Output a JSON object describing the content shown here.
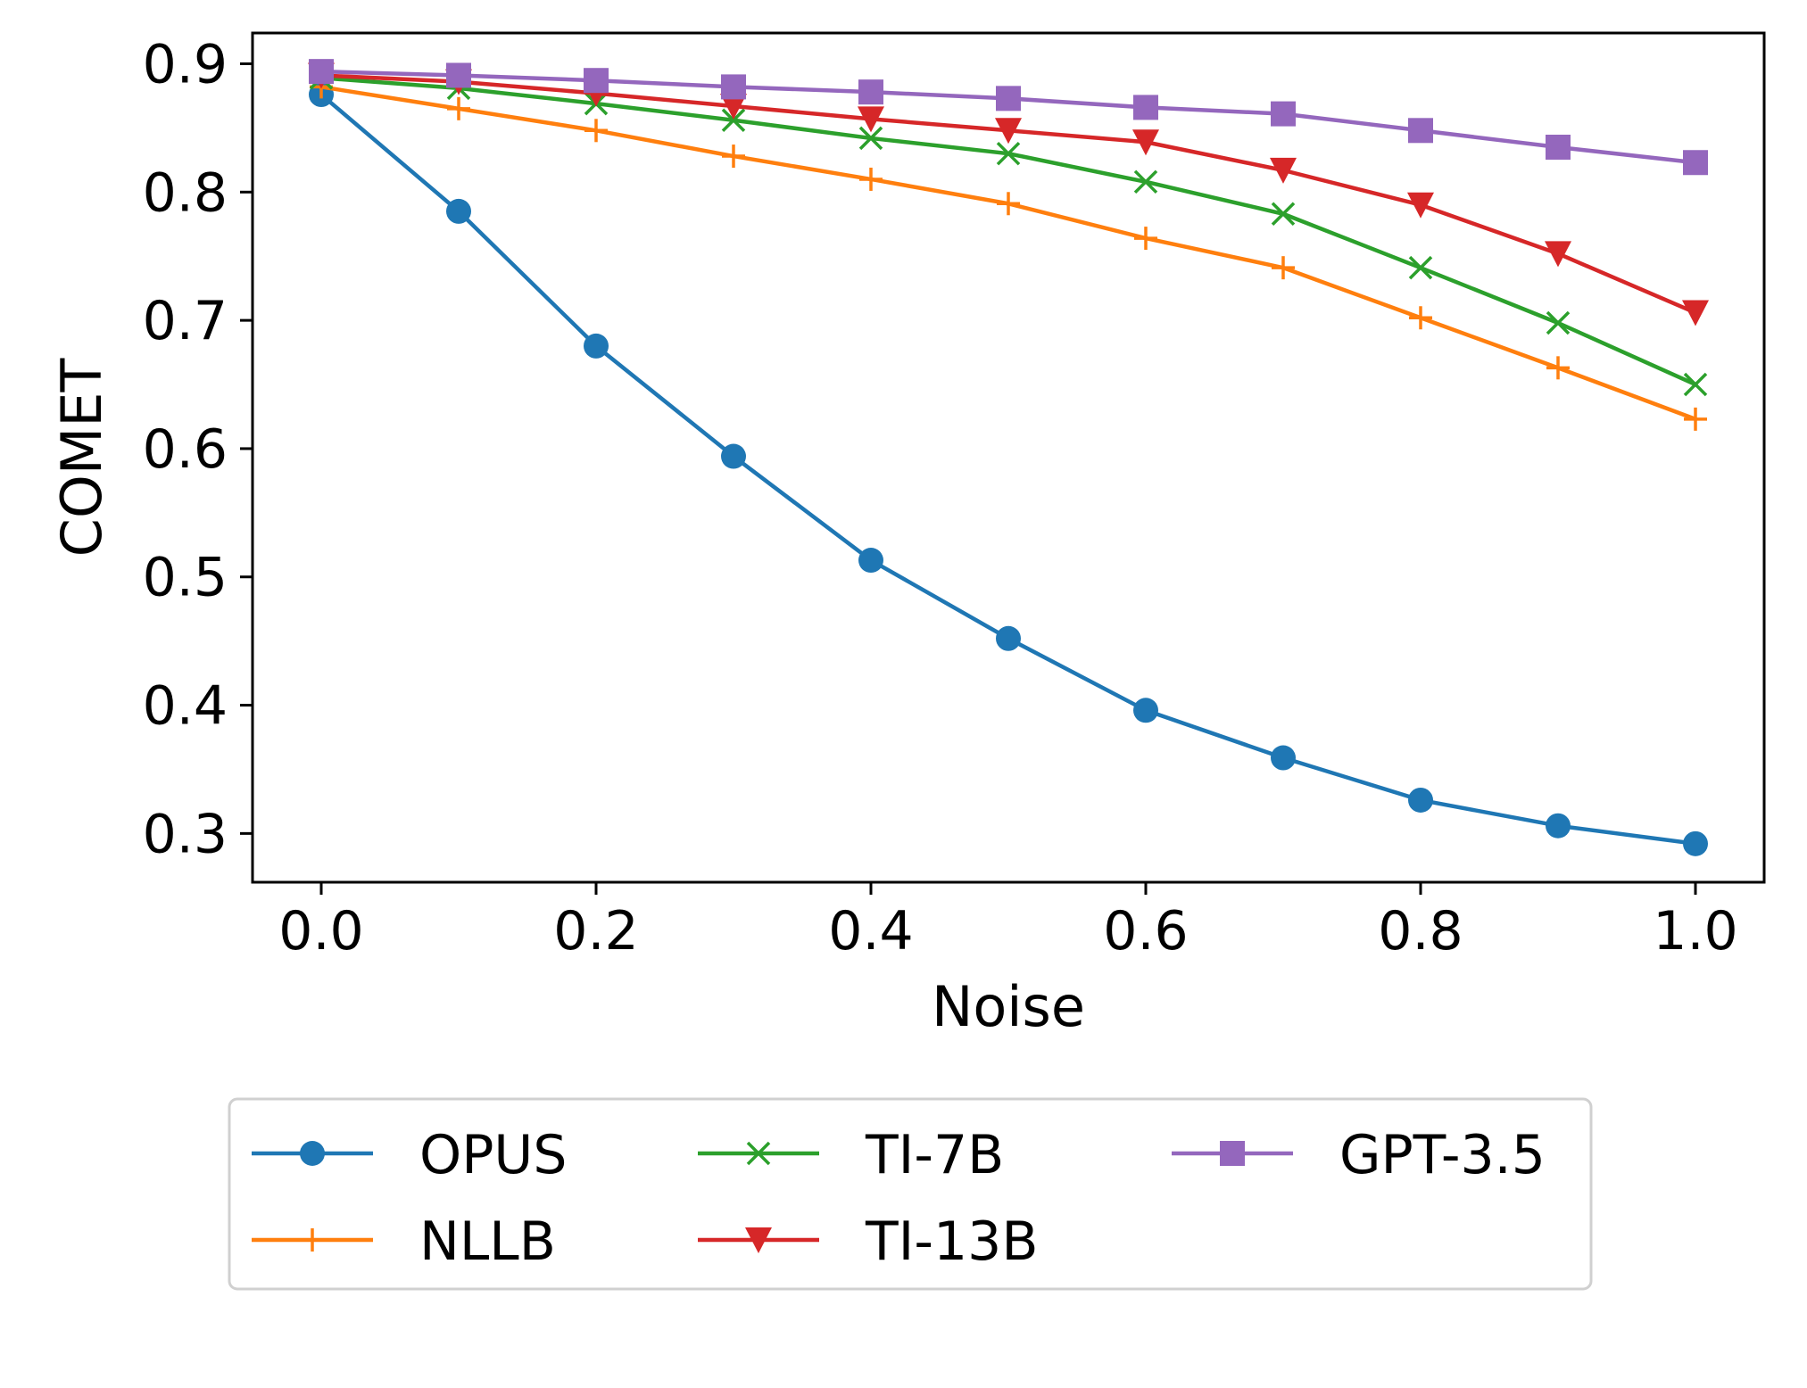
{
  "chart_data": {
    "type": "line",
    "title": "",
    "xlabel": "Noise",
    "ylabel": "COMET",
    "x": [
      0.0,
      0.1,
      0.2,
      0.3,
      0.4,
      0.5,
      0.6,
      0.7,
      0.8,
      0.9,
      1.0
    ],
    "xlim": [
      -0.05,
      1.05
    ],
    "ylim": [
      0.262,
      0.924
    ],
    "xticks": [
      0.0,
      0.2,
      0.4,
      0.6,
      0.8,
      1.0
    ],
    "xtick_labels": [
      "0.0",
      "0.2",
      "0.4",
      "0.6",
      "0.8",
      "1.0"
    ],
    "yticks": [
      0.3,
      0.4,
      0.5,
      0.6,
      0.7,
      0.8,
      0.9
    ],
    "ytick_labels": [
      "0.3",
      "0.4",
      "0.5",
      "0.6",
      "0.7",
      "0.8",
      "0.9"
    ],
    "grid": false,
    "legend_position": "bottom-center, below axes, 3 columns",
    "series": [
      {
        "name": "OPUS",
        "color": "#1f77b4",
        "marker": "circle",
        "values": [
          0.876,
          0.785,
          0.68,
          0.594,
          0.513,
          0.452,
          0.396,
          0.359,
          0.326,
          0.306,
          0.292
        ]
      },
      {
        "name": "NLLB",
        "color": "#ff7f0e",
        "marker": "plus",
        "values": [
          0.882,
          0.865,
          0.848,
          0.828,
          0.81,
          0.791,
          0.764,
          0.741,
          0.702,
          0.663,
          0.623
        ]
      },
      {
        "name": "TI-7B",
        "color": "#2ca02c",
        "marker": "x",
        "values": [
          0.889,
          0.881,
          0.869,
          0.856,
          0.842,
          0.83,
          0.808,
          0.783,
          0.741,
          0.698,
          0.65
        ]
      },
      {
        "name": "TI-13B",
        "color": "#d62728",
        "marker": "triangle-down",
        "values": [
          0.891,
          0.886,
          0.877,
          0.867,
          0.857,
          0.848,
          0.839,
          0.817,
          0.79,
          0.752,
          0.706
        ]
      },
      {
        "name": "GPT-3.5",
        "color": "#9467bd",
        "marker": "square",
        "values": [
          0.894,
          0.891,
          0.887,
          0.882,
          0.878,
          0.873,
          0.866,
          0.861,
          0.848,
          0.835,
          0.823
        ]
      }
    ]
  }
}
